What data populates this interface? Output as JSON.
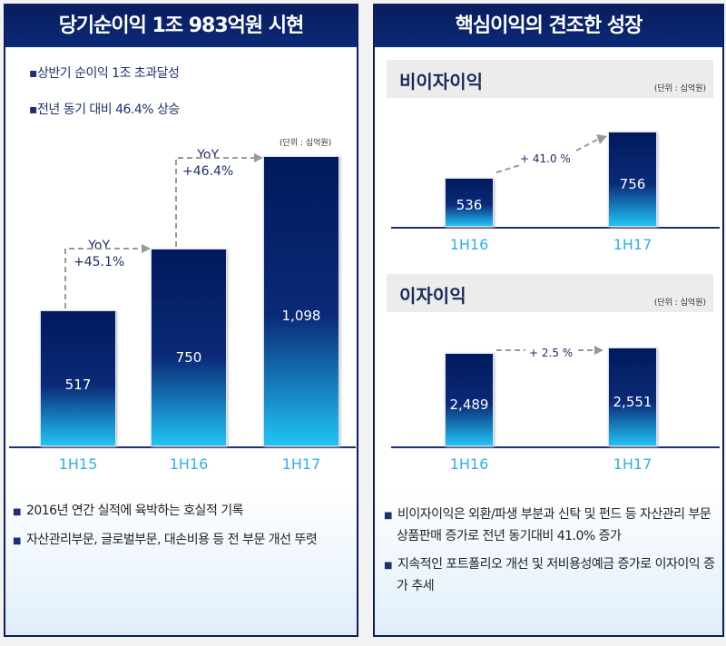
{
  "left": {
    "title": "당기순이익 1조 983억원 시현",
    "bullets": [
      "상반기 순이익 1조 초과달성",
      "전년 동기 대비 46.4% 상승"
    ],
    "unit": "(단위 : 십억원)",
    "bottom": [
      "2016년 연간 실적에 육박하는 호실적 기록",
      "자산관리부문, 글로벌부문, 대손비용 등 전 부문 개선 뚜렷"
    ]
  },
  "right": {
    "title": "핵심이익의 견조한 성장",
    "unit": "(단위 : 십억원)",
    "bottom": [
      "비이자이익은 외환/파생 부분과 신탁 및 펀드 등 자산관리 부문 상품판매 증가로 전년 동기대비 41.0% 증가",
      "지속적인 포트폴리오 개선 및 저비용성예금 증가로 이자이익 증가 추세"
    ]
  },
  "chart_data": [
    {
      "type": "bar",
      "title": "",
      "categories": [
        "1H15",
        "1H16",
        "1H17"
      ],
      "values": [
        517,
        750,
        1098
      ],
      "labels": [
        "517",
        "750",
        "1,098"
      ],
      "annotations": [
        {
          "label": "YoY",
          "value": "+45.1%"
        },
        {
          "label": "YoY",
          "value": "+46.4%"
        }
      ],
      "colors": {
        "top": "#001a5c",
        "bottom": "#21c4f5",
        "category": "#2fb0ec"
      }
    },
    {
      "type": "bar",
      "title": "비이자이익",
      "categories": [
        "1H16",
        "1H17"
      ],
      "values": [
        536,
        756
      ],
      "labels": [
        "536",
        "756"
      ],
      "annotations": [
        {
          "value": "+ 41.0 %"
        }
      ]
    },
    {
      "type": "bar",
      "title": "이자이익",
      "categories": [
        "1H16",
        "1H17"
      ],
      "values": [
        2489,
        2551
      ],
      "labels": [
        "2,489",
        "2,551"
      ],
      "annotations": [
        {
          "value": "+ 2.5 %"
        }
      ]
    }
  ]
}
